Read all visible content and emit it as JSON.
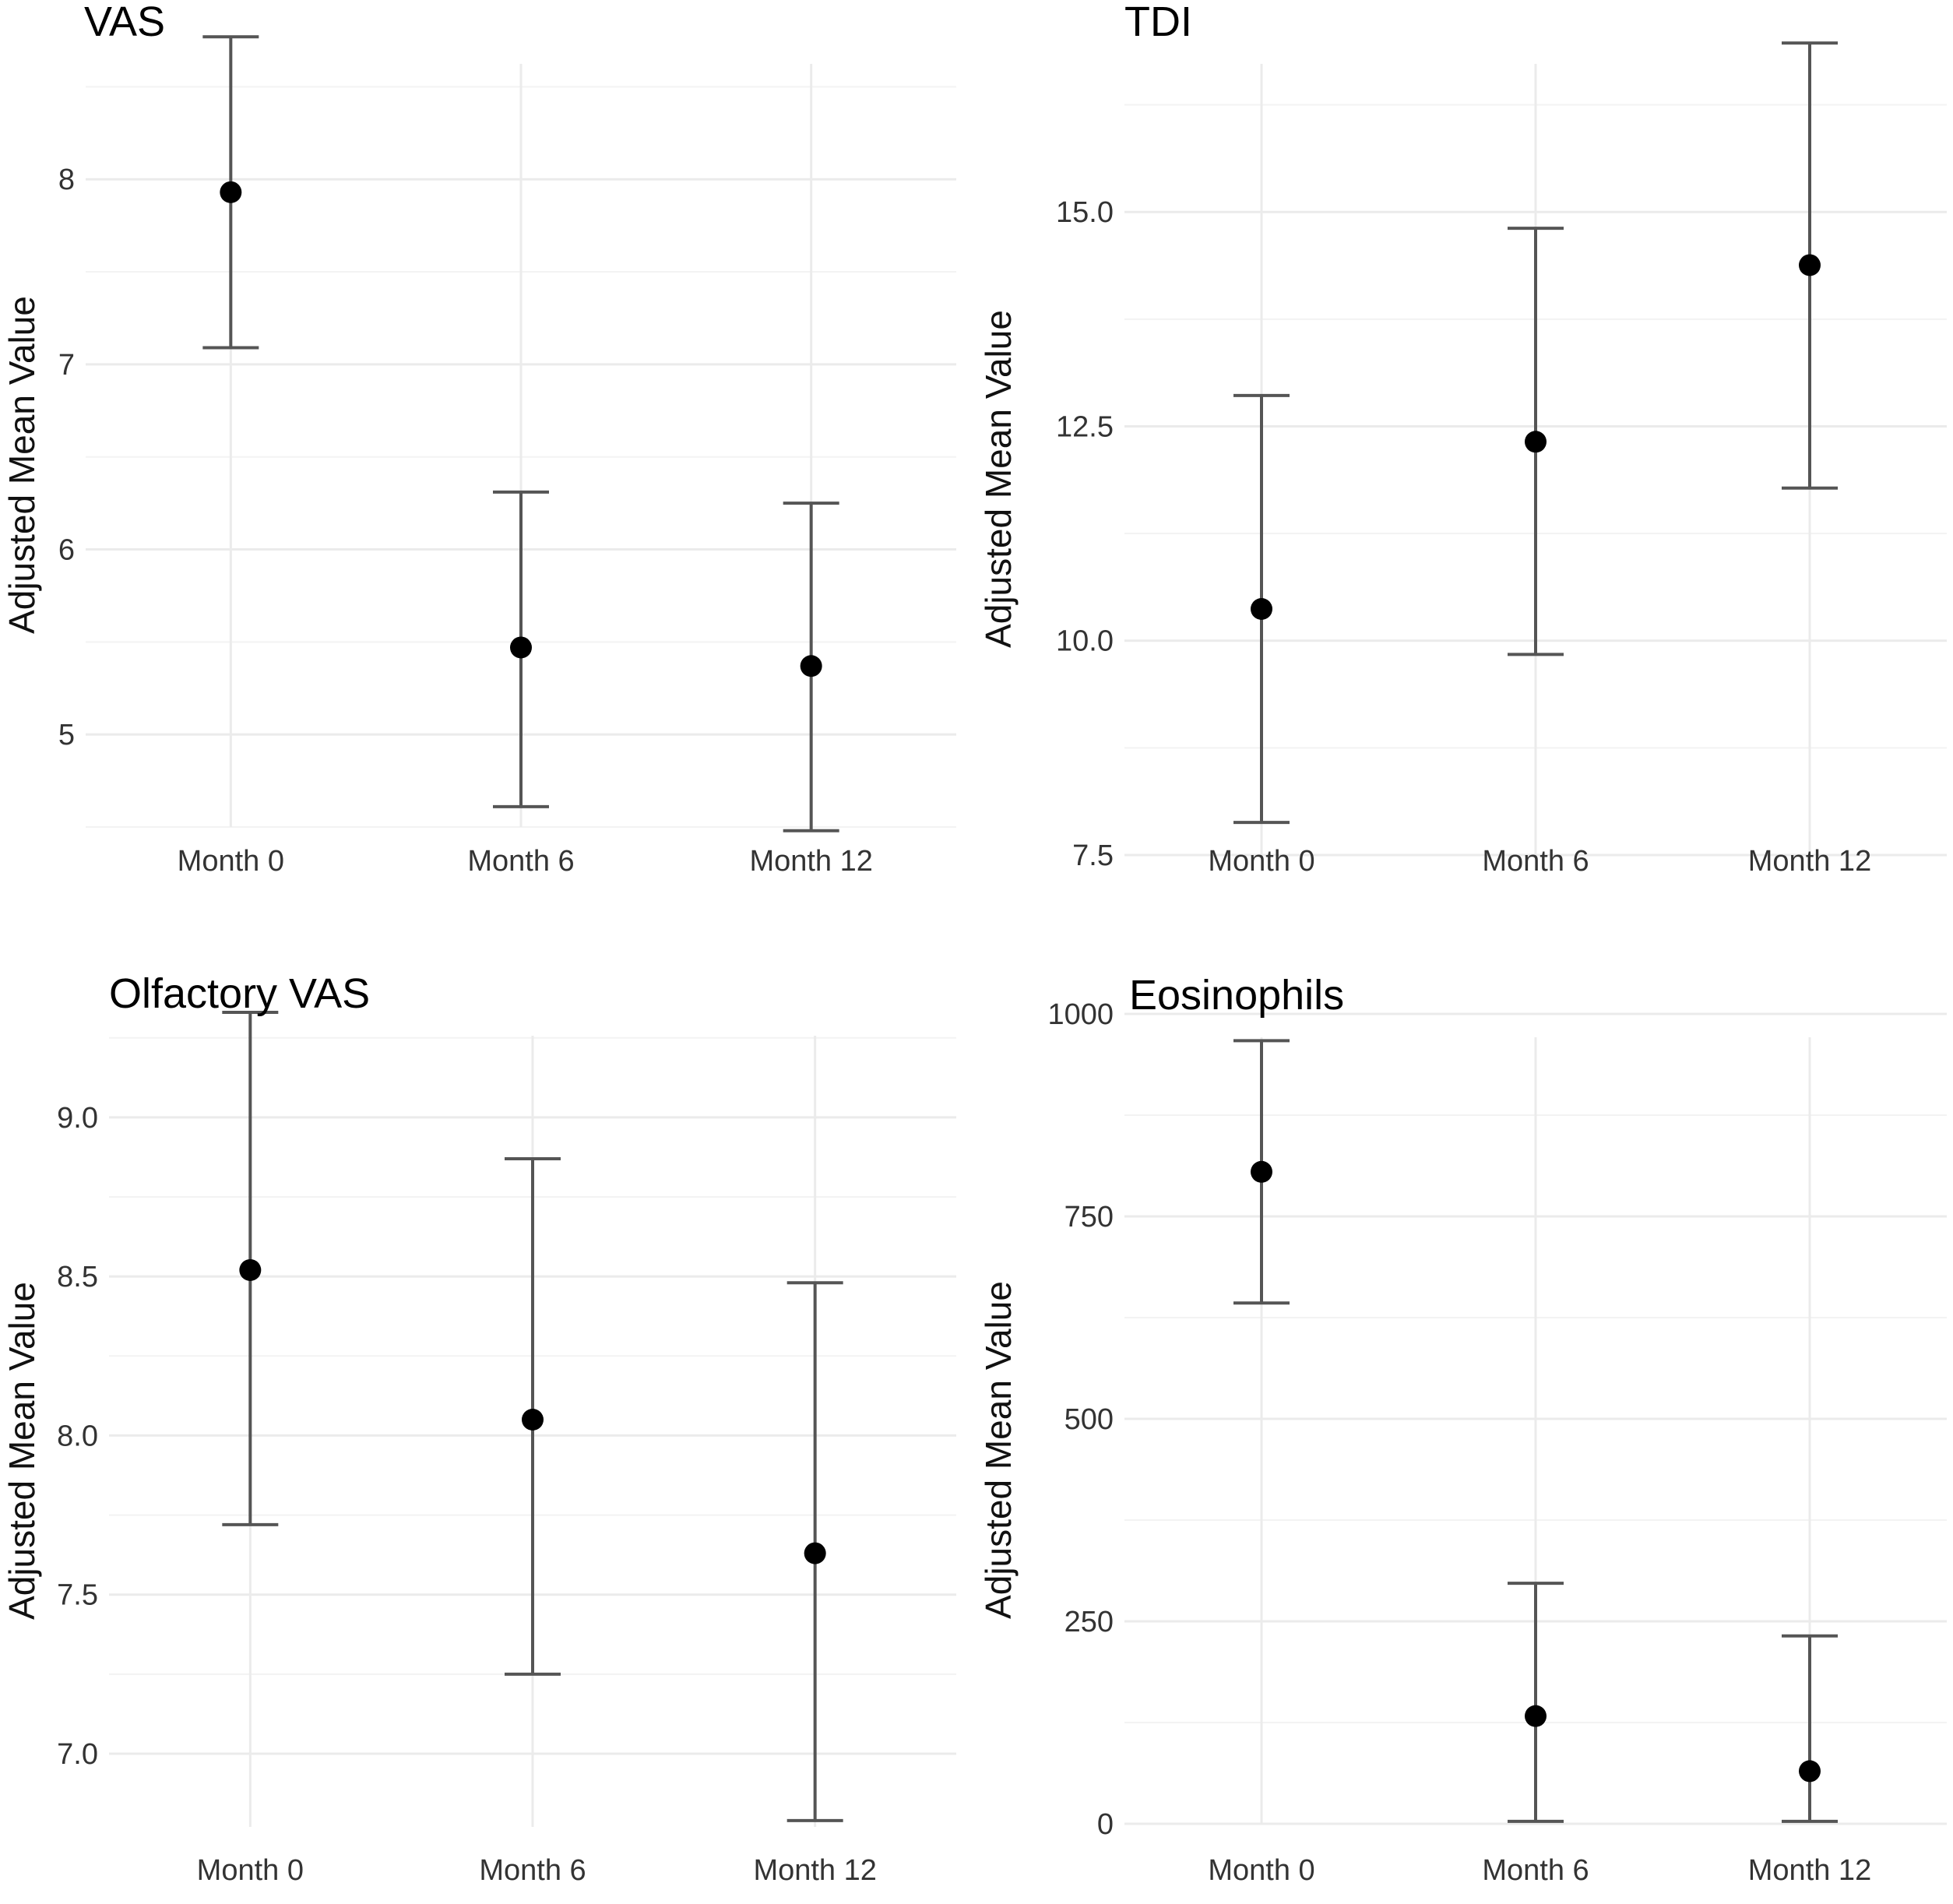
{
  "chart_data": [
    {
      "type": "scatter",
      "title": "VAS",
      "xlabel": "",
      "ylabel": "Adjusted Mean Value",
      "categories": [
        "Month 0",
        "Month 6",
        "Month 12"
      ],
      "values": [
        7.93,
        5.47,
        5.37
      ],
      "lower": [
        7.09,
        4.61,
        4.48
      ],
      "upper": [
        8.77,
        6.31,
        6.25
      ],
      "ylim": [
        4.5,
        8.75
      ],
      "yticks": [
        5,
        6,
        7,
        8
      ],
      "ytick_labels": [
        "5",
        "6",
        "7",
        "8"
      ],
      "grid": true
    },
    {
      "type": "scatter",
      "title": "TDI",
      "xlabel": "",
      "ylabel": "Adjusted Mean Value",
      "categories": [
        "Month 0",
        "Month 6",
        "Month 12"
      ],
      "values": [
        10.37,
        12.32,
        14.38
      ],
      "lower": [
        7.88,
        9.84,
        11.78
      ],
      "upper": [
        12.86,
        14.81,
        16.97
      ],
      "ylim": [
        7.5,
        17.0
      ],
      "yticks": [
        7.5,
        10.0,
        12.5,
        15.0
      ],
      "ytick_labels": [
        "7.5",
        "10.0",
        "12.5",
        "15.0"
      ],
      "grid": true
    },
    {
      "type": "scatter",
      "title": "Olfactory VAS",
      "xlabel": "",
      "ylabel": "Adjusted Mean Value",
      "categories": [
        "Month 0",
        "Month 6",
        "Month 12"
      ],
      "values": [
        8.52,
        8.05,
        7.63
      ],
      "lower": [
        7.72,
        7.25,
        6.79
      ],
      "upper": [
        9.33,
        8.87,
        8.48
      ],
      "ylim": [
        6.77,
        9.33
      ],
      "yticks": [
        7.0,
        7.5,
        8.0,
        8.5,
        9.0
      ],
      "ytick_labels": [
        "7.0",
        "7.5",
        "8.0",
        "8.5",
        "9.0"
      ],
      "grid": true
    },
    {
      "type": "scatter",
      "title": "Eosinophils",
      "xlabel": "",
      "ylabel": "Adjusted Mean Value",
      "categories": [
        "Month 0",
        "Month 6",
        "Month 12"
      ],
      "values": [
        805,
        133,
        65
      ],
      "lower": [
        643,
        3,
        3
      ],
      "upper": [
        967,
        297,
        232
      ],
      "ylim": [
        0,
        1000
      ],
      "yticks": [
        0,
        250,
        500,
        750,
        1000
      ],
      "ytick_labels": [
        "0",
        "250",
        "500",
        "750",
        "1000"
      ],
      "grid": true
    }
  ]
}
